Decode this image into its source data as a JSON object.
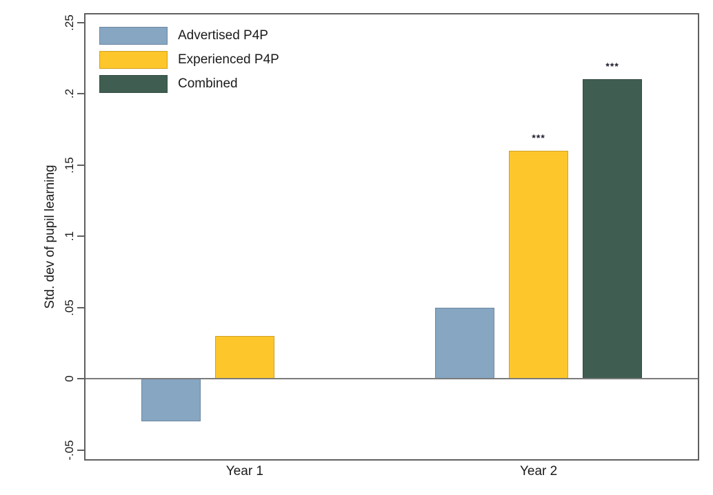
{
  "figure": {
    "background": "#ffffff",
    "axis_color": "#5f5f5f",
    "zero_line_color": "#7a7a7a",
    "text_color": "#1a1a1a"
  },
  "chart_data": {
    "type": "bar",
    "title": "",
    "xlabel": "",
    "ylabel": "Std. dev of pupil learning",
    "categories": [
      "Year 1",
      "Year 2"
    ],
    "series": [
      {
        "name": "Advertised P4P",
        "color": "#86a6c2",
        "values": [
          -0.03,
          0.05
        ],
        "sig": [
          "",
          ""
        ]
      },
      {
        "name": "Experienced P4P",
        "color": "#fdc62b",
        "values": [
          0.03,
          0.16
        ],
        "sig": [
          "",
          "***"
        ]
      },
      {
        "name": "Combined",
        "color": "#3f5e51",
        "values": [
          null,
          0.21
        ],
        "sig": [
          "",
          "***"
        ]
      }
    ],
    "yticks": [
      -0.05,
      0,
      0.05,
      0.1,
      0.15,
      0.2,
      0.25
    ],
    "ytick_labels": [
      "-.05",
      "0",
      ".05",
      ".1",
      ".15",
      ".2",
      ".25"
    ],
    "ylim": [
      -0.0565,
      0.2556
    ],
    "grid": false,
    "zero_line": true,
    "legend_position": "top-left",
    "significance_note": "*** shown above Experienced P4P and Combined bars in Year 2"
  }
}
